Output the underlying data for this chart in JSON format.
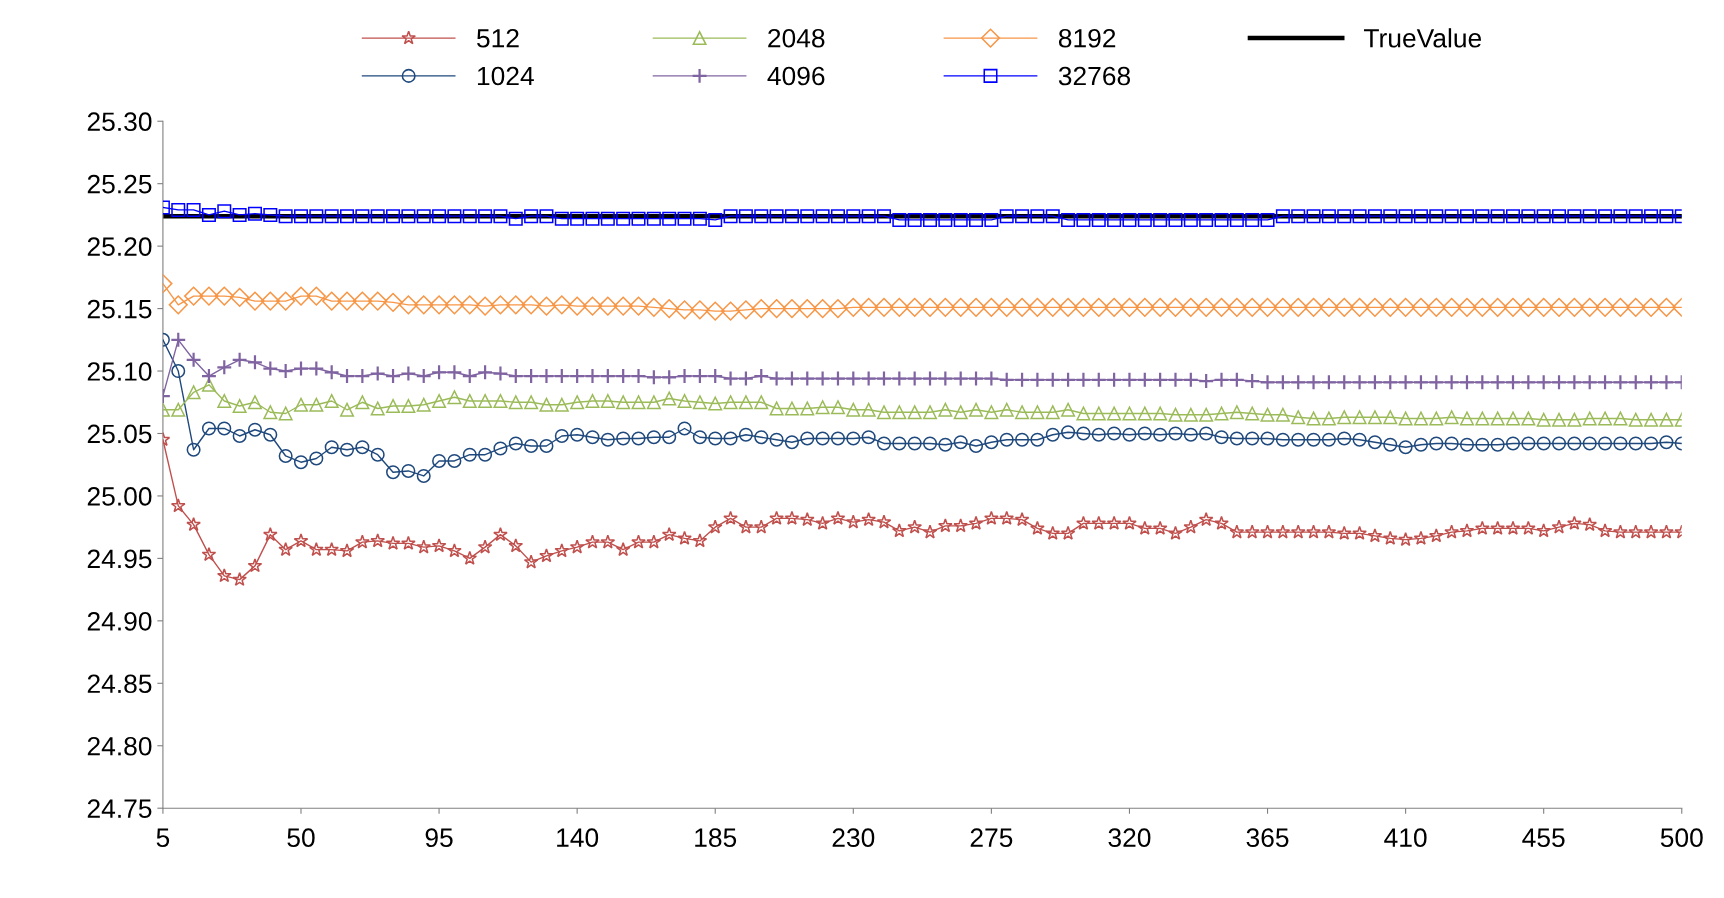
{
  "chart_data": {
    "type": "line",
    "x": [
      5,
      10,
      15,
      20,
      25,
      30,
      35,
      40,
      45,
      50,
      55,
      60,
      65,
      70,
      75,
      80,
      85,
      90,
      95,
      100,
      105,
      110,
      115,
      120,
      125,
      130,
      135,
      140,
      145,
      150,
      155,
      160,
      165,
      170,
      175,
      180,
      185,
      190,
      195,
      200,
      205,
      210,
      215,
      220,
      225,
      230,
      235,
      240,
      245,
      250,
      255,
      260,
      265,
      270,
      275,
      280,
      285,
      290,
      295,
      300,
      305,
      310,
      315,
      320,
      325,
      330,
      335,
      340,
      345,
      350,
      355,
      360,
      365,
      370,
      375,
      380,
      385,
      390,
      395,
      400,
      405,
      410,
      415,
      420,
      425,
      430,
      435,
      440,
      445,
      450,
      455,
      460,
      465,
      470,
      475,
      480,
      485,
      490,
      495,
      500
    ],
    "series": [
      {
        "name": "512",
        "color": "#c0504d",
        "marker": "star",
        "values": [
          25.045,
          24.992,
          24.977,
          24.953,
          24.936,
          24.933,
          24.944,
          24.969,
          24.957,
          24.964,
          24.957,
          24.957,
          24.956,
          24.963,
          24.964,
          24.962,
          24.962,
          24.959,
          24.96,
          24.956,
          24.95,
          24.959,
          24.969,
          24.96,
          24.947,
          24.952,
          24.956,
          24.959,
          24.963,
          24.963,
          24.957,
          24.963,
          24.963,
          24.969,
          24.966,
          24.964,
          24.975,
          24.982,
          24.975,
          24.975,
          24.982,
          24.982,
          24.981,
          24.978,
          24.982,
          24.979,
          24.981,
          24.979,
          24.972,
          24.975,
          24.971,
          24.976,
          24.976,
          24.978,
          24.982,
          24.982,
          24.981,
          24.974,
          24.97,
          24.97,
          24.978,
          24.978,
          24.978,
          24.978,
          24.974,
          24.974,
          24.97,
          24.975,
          24.981,
          24.978,
          24.971,
          24.971,
          24.971,
          24.971,
          24.971,
          24.971,
          24.971,
          24.97,
          24.97,
          24.968,
          24.966,
          24.965,
          24.966,
          24.968,
          24.971,
          24.972,
          24.974,
          24.974,
          24.974,
          24.974,
          24.972,
          24.975,
          24.978,
          24.977,
          24.972,
          24.971,
          24.971,
          24.971,
          24.971,
          24.971
        ]
      },
      {
        "name": "1024",
        "color": "#1f497d",
        "marker": "circle",
        "values": [
          25.125,
          25.1,
          25.037,
          25.054,
          25.054,
          25.048,
          25.053,
          25.049,
          25.032,
          25.027,
          25.03,
          25.039,
          25.037,
          25.039,
          25.033,
          25.019,
          25.02,
          25.016,
          25.028,
          25.028,
          25.033,
          25.033,
          25.038,
          25.042,
          25.04,
          25.04,
          25.048,
          25.049,
          25.047,
          25.045,
          25.046,
          25.046,
          25.047,
          25.047,
          25.054,
          25.047,
          25.046,
          25.046,
          25.049,
          25.047,
          25.045,
          25.043,
          25.046,
          25.046,
          25.046,
          25.046,
          25.047,
          25.042,
          25.042,
          25.042,
          25.042,
          25.041,
          25.043,
          25.04,
          25.043,
          25.045,
          25.045,
          25.045,
          25.049,
          25.051,
          25.05,
          25.049,
          25.05,
          25.049,
          25.05,
          25.049,
          25.05,
          25.049,
          25.05,
          25.047,
          25.046,
          25.046,
          25.046,
          25.045,
          25.045,
          25.045,
          25.045,
          25.046,
          25.045,
          25.043,
          25.041,
          25.039,
          25.041,
          25.042,
          25.042,
          25.041,
          25.041,
          25.041,
          25.042,
          25.042,
          25.042,
          25.042,
          25.042,
          25.042,
          25.042,
          25.042,
          25.042,
          25.042,
          25.043,
          25.042
        ]
      },
      {
        "name": "2048",
        "color": "#9bbb59",
        "marker": "triangle",
        "values": [
          25.069,
          25.069,
          25.083,
          25.089,
          25.076,
          25.072,
          25.075,
          25.067,
          25.066,
          25.073,
          25.073,
          25.076,
          25.069,
          25.075,
          25.07,
          25.072,
          25.072,
          25.073,
          25.076,
          25.079,
          25.076,
          25.076,
          25.076,
          25.075,
          25.075,
          25.073,
          25.073,
          25.075,
          25.076,
          25.076,
          25.075,
          25.075,
          25.075,
          25.078,
          25.076,
          25.075,
          25.074,
          25.075,
          25.075,
          25.075,
          25.07,
          25.07,
          25.07,
          25.071,
          25.071,
          25.069,
          25.069,
          25.067,
          25.067,
          25.067,
          25.067,
          25.069,
          25.067,
          25.069,
          25.067,
          25.069,
          25.067,
          25.067,
          25.067,
          25.069,
          25.066,
          25.066,
          25.066,
          25.066,
          25.066,
          25.066,
          25.065,
          25.065,
          25.065,
          25.066,
          25.067,
          25.066,
          25.065,
          25.065,
          25.063,
          25.062,
          25.062,
          25.063,
          25.063,
          25.063,
          25.063,
          25.062,
          25.062,
          25.062,
          25.063,
          25.062,
          25.062,
          25.062,
          25.062,
          25.062,
          25.061,
          25.061,
          25.061,
          25.062,
          25.062,
          25.062,
          25.061,
          25.061,
          25.061,
          25.061
        ]
      },
      {
        "name": "4096",
        "color": "#8064a2",
        "marker": "cross",
        "values": [
          25.08,
          25.125,
          25.109,
          25.096,
          25.103,
          25.109,
          25.107,
          25.102,
          25.1,
          25.102,
          25.102,
          25.099,
          25.096,
          25.096,
          25.098,
          25.096,
          25.098,
          25.096,
          25.099,
          25.099,
          25.096,
          25.099,
          25.098,
          25.096,
          25.096,
          25.096,
          25.096,
          25.096,
          25.096,
          25.096,
          25.096,
          25.096,
          25.095,
          25.095,
          25.096,
          25.096,
          25.096,
          25.094,
          25.094,
          25.096,
          25.094,
          25.094,
          25.094,
          25.094,
          25.094,
          25.094,
          25.094,
          25.094,
          25.094,
          25.094,
          25.094,
          25.094,
          25.094,
          25.094,
          25.094,
          25.093,
          25.093,
          25.093,
          25.093,
          25.093,
          25.093,
          25.093,
          25.093,
          25.093,
          25.093,
          25.093,
          25.093,
          25.093,
          25.092,
          25.093,
          25.093,
          25.092,
          25.091,
          25.091,
          25.091,
          25.091,
          25.091,
          25.091,
          25.091,
          25.091,
          25.091,
          25.091,
          25.091,
          25.091,
          25.091,
          25.091,
          25.091,
          25.091,
          25.091,
          25.091,
          25.091,
          25.091,
          25.091,
          25.091,
          25.091,
          25.091,
          25.091,
          25.091,
          25.091,
          25.091
        ]
      },
      {
        "name": "8192",
        "color": "#f79646",
        "marker": "diamond",
        "values": [
          25.17,
          25.153,
          25.16,
          25.16,
          25.16,
          25.159,
          25.156,
          25.156,
          25.156,
          25.16,
          25.16,
          25.156,
          25.156,
          25.156,
          25.156,
          25.155,
          25.153,
          25.153,
          25.153,
          25.153,
          25.153,
          25.152,
          25.153,
          25.153,
          25.153,
          25.152,
          25.153,
          25.152,
          25.152,
          25.152,
          25.152,
          25.152,
          25.151,
          25.15,
          25.149,
          25.149,
          25.148,
          25.148,
          25.149,
          25.15,
          25.15,
          25.15,
          25.15,
          25.15,
          25.15,
          25.151,
          25.151,
          25.151,
          25.151,
          25.151,
          25.151,
          25.151,
          25.151,
          25.151,
          25.151,
          25.151,
          25.151,
          25.151,
          25.151,
          25.151,
          25.151,
          25.151,
          25.151,
          25.151,
          25.151,
          25.151,
          25.151,
          25.151,
          25.151,
          25.151,
          25.151,
          25.151,
          25.151,
          25.151,
          25.151,
          25.151,
          25.151,
          25.151,
          25.151,
          25.151,
          25.151,
          25.151,
          25.151,
          25.151,
          25.151,
          25.151,
          25.151,
          25.151,
          25.151,
          25.151,
          25.151,
          25.151,
          25.151,
          25.151,
          25.151,
          25.151,
          25.151,
          25.151,
          25.151,
          25.151
        ]
      },
      {
        "name": "32768",
        "color": "#0000ff",
        "marker": "square",
        "values": [
          25.231,
          25.229,
          25.229,
          25.225,
          25.228,
          25.225,
          25.226,
          25.225,
          25.224,
          25.224,
          25.224,
          25.224,
          25.224,
          25.224,
          25.224,
          25.224,
          25.224,
          25.224,
          25.224,
          25.224,
          25.224,
          25.224,
          25.224,
          25.222,
          25.224,
          25.224,
          25.222,
          25.222,
          25.222,
          25.222,
          25.222,
          25.222,
          25.222,
          25.222,
          25.222,
          25.222,
          25.221,
          25.224,
          25.224,
          25.224,
          25.224,
          25.224,
          25.224,
          25.224,
          25.224,
          25.224,
          25.224,
          25.224,
          25.221,
          25.221,
          25.221,
          25.221,
          25.221,
          25.221,
          25.221,
          25.224,
          25.224,
          25.224,
          25.224,
          25.221,
          25.221,
          25.221,
          25.221,
          25.221,
          25.221,
          25.221,
          25.221,
          25.221,
          25.221,
          25.221,
          25.221,
          25.221,
          25.221,
          25.224,
          25.224,
          25.224,
          25.224,
          25.224,
          25.224,
          25.224,
          25.224,
          25.224,
          25.224,
          25.224,
          25.224,
          25.224,
          25.224,
          25.224,
          25.224,
          25.224,
          25.224,
          25.224,
          25.224,
          25.224,
          25.224,
          25.224,
          25.224,
          25.224,
          25.224,
          25.224
        ]
      },
      {
        "name": "TrueValue",
        "color": "#000000",
        "marker": "none",
        "x": [
          5,
          500
        ],
        "values": [
          25.224,
          25.224
        ]
      }
    ],
    "xlim": [
      5,
      500
    ],
    "xticks": [
      5,
      50,
      95,
      140,
      185,
      230,
      275,
      320,
      365,
      410,
      455,
      500
    ],
    "ylim": [
      24.75,
      25.3
    ],
    "yticks": [
      {
        "value": 24.75,
        "label": "24.75"
      },
      {
        "value": 24.8,
        "label": "24.80"
      },
      {
        "value": 24.85,
        "label": "24.85"
      },
      {
        "value": 24.9,
        "label": "24.90"
      },
      {
        "value": 24.95,
        "label": "24.95"
      },
      {
        "value": 25.0,
        "label": "25.00"
      },
      {
        "value": 25.05,
        "label": "25.05"
      },
      {
        "value": 25.1,
        "label": "25.10"
      },
      {
        "value": 25.15,
        "label": "25.15"
      },
      {
        "value": 25.2,
        "label": "25.20"
      },
      {
        "value": 25.25,
        "label": "25.25"
      },
      {
        "value": 25.3,
        "label": "25.30"
      }
    ],
    "legend": "top",
    "line_style": "solid"
  }
}
